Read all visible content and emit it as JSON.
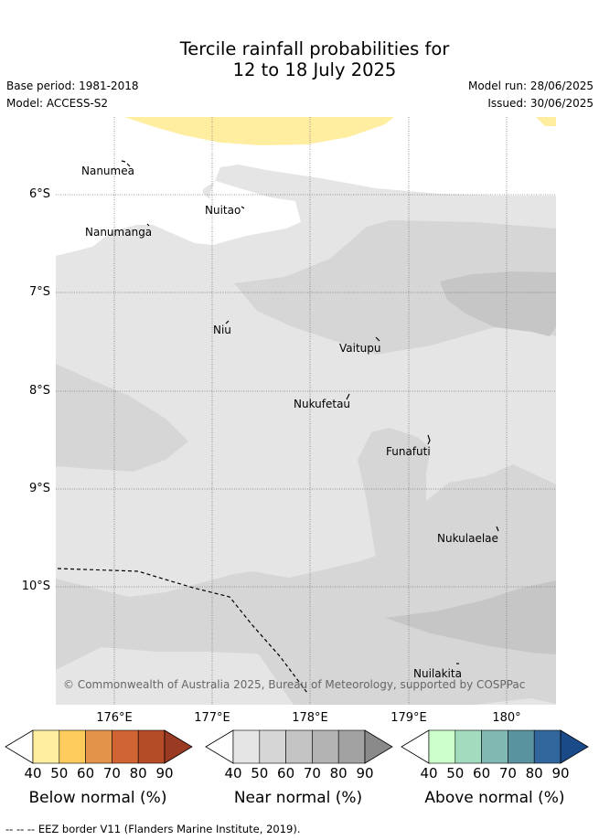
{
  "title": {
    "line1": "Tercile rainfall probabilities for",
    "line2": "12 to 18 July 2025"
  },
  "meta": {
    "base_period": "Base period: 1981-2018",
    "model": "Model: ACCESS-S2",
    "model_run": "Model run: 28/06/2025",
    "issued": "Issued: 30/06/2025"
  },
  "map": {
    "lat_labels": [
      "6°S",
      "7°S",
      "8°S",
      "9°S",
      "10°S"
    ],
    "lon_labels": [
      "176°E",
      "177°E",
      "178°E",
      "179°E",
      "180°"
    ],
    "places": {
      "nanumea": "Nanumea",
      "nuitao": "Nuitao",
      "nanumanga": "Nanumanga",
      "niu": "Niu",
      "vaitupu": "Vaitupu",
      "nukufetau": "Nukufetau",
      "funafuti": "Funafuti",
      "nukulaelae": "Nukulaelae",
      "nuilakita": "Nuilakita"
    },
    "copyright": "© Commonwealth of Australia 2025, Bureau of Meteorology, supported by COSPPac",
    "colors": {
      "below_50": "#ffeda0",
      "near_50": "#e5e5e5",
      "near_60": "#d6d6d6",
      "near_70": "#c6c6c6",
      "grid": "#777777"
    }
  },
  "colorbars": {
    "ticks": [
      "40",
      "50",
      "60",
      "70",
      "80",
      "90"
    ],
    "below": {
      "title": "Below normal (%)",
      "colors": [
        "#ffeda0",
        "#fecc5c",
        "#e3944a",
        "#d06432",
        "#b44c28",
        "#9a3a22"
      ]
    },
    "near": {
      "title": "Near normal (%)",
      "colors": [
        "#e5e5e5",
        "#d6d6d6",
        "#c4c4c4",
        "#b3b3b3",
        "#a2a2a2",
        "#8a8a8a"
      ]
    },
    "above": {
      "title": "Above normal (%)",
      "colors": [
        "#ccffcc",
        "#a3dbbe",
        "#82b8b2",
        "#5a93a0",
        "#32679e",
        "#1a4a88"
      ]
    }
  },
  "legend": {
    "eez": "--  --  -- EEZ border V11 (Flanders Marine Institute, 2019)."
  }
}
